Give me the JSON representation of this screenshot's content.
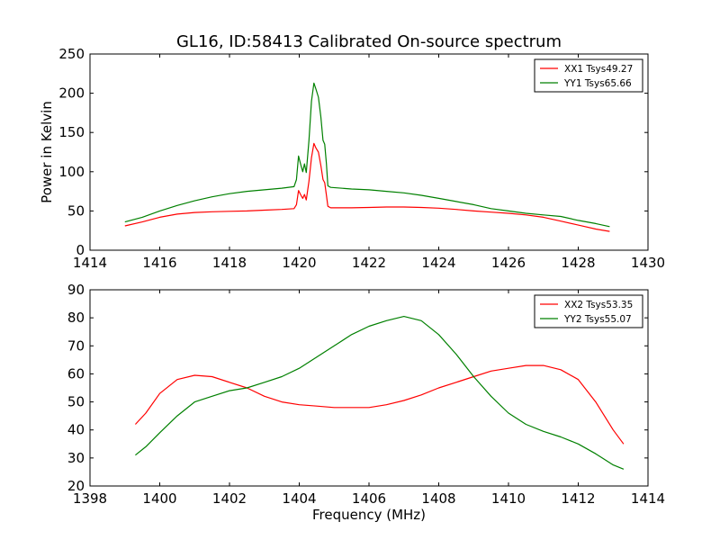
{
  "chart_data": [
    {
      "type": "line",
      "title": "GL16, ID:58413 Calibrated On-source spectrum",
      "xlabel": "",
      "ylabel": "Power in Kelvin",
      "xlim": [
        1414,
        1430
      ],
      "ylim": [
        0,
        250
      ],
      "xticks": [
        "1414",
        "1416",
        "1418",
        "1420",
        "1422",
        "1424",
        "1426",
        "1428",
        "1430"
      ],
      "yticks": [
        "0",
        "50",
        "100",
        "150",
        "200",
        "250"
      ],
      "grid": false,
      "legend": "top-right",
      "series": [
        {
          "name": "XX1 Tsys49.27",
          "color": "#ff0000",
          "points": [
            [
              1415.0,
              31
            ],
            [
              1415.5,
              36
            ],
            [
              1416.0,
              42
            ],
            [
              1416.5,
              46
            ],
            [
              1417.0,
              48
            ],
            [
              1417.5,
              49
            ],
            [
              1418.0,
              49.5
            ],
            [
              1418.5,
              50
            ],
            [
              1419.0,
              51
            ],
            [
              1419.5,
              52
            ],
            [
              1419.85,
              53
            ],
            [
              1419.92,
              58
            ],
            [
              1419.98,
              76
            ],
            [
              1420.05,
              70
            ],
            [
              1420.1,
              66
            ],
            [
              1420.15,
              71
            ],
            [
              1420.2,
              64
            ],
            [
              1420.28,
              88
            ],
            [
              1420.35,
              118
            ],
            [
              1420.42,
              136
            ],
            [
              1420.48,
              130
            ],
            [
              1420.55,
              125
            ],
            [
              1420.62,
              108
            ],
            [
              1420.68,
              90
            ],
            [
              1420.73,
              86
            ],
            [
              1420.78,
              70
            ],
            [
              1420.82,
              56
            ],
            [
              1420.9,
              54
            ],
            [
              1421.5,
              54
            ],
            [
              1422.0,
              54.5
            ],
            [
              1422.5,
              55
            ],
            [
              1423.0,
              55
            ],
            [
              1423.5,
              54.5
            ],
            [
              1424.0,
              53.5
            ],
            [
              1424.5,
              52
            ],
            [
              1425.0,
              50
            ],
            [
              1425.5,
              48.5
            ],
            [
              1426.0,
              47
            ],
            [
              1426.5,
              45
            ],
            [
              1427.0,
              42
            ],
            [
              1427.5,
              37
            ],
            [
              1428.0,
              32
            ],
            [
              1428.5,
              27
            ],
            [
              1428.9,
              24
            ]
          ]
        },
        {
          "name": "YY1 Tsys65.66",
          "color": "#008000",
          "points": [
            [
              1415.0,
              36
            ],
            [
              1415.5,
              42
            ],
            [
              1416.0,
              50
            ],
            [
              1416.5,
              57
            ],
            [
              1417.0,
              63
            ],
            [
              1417.5,
              68
            ],
            [
              1418.0,
              72
            ],
            [
              1418.5,
              75
            ],
            [
              1419.0,
              77
            ],
            [
              1419.5,
              79
            ],
            [
              1419.85,
              81
            ],
            [
              1419.92,
              90
            ],
            [
              1419.98,
              120
            ],
            [
              1420.05,
              108
            ],
            [
              1420.1,
              100
            ],
            [
              1420.15,
              110
            ],
            [
              1420.2,
              99
            ],
            [
              1420.28,
              140
            ],
            [
              1420.35,
              190
            ],
            [
              1420.42,
              213
            ],
            [
              1420.48,
              205
            ],
            [
              1420.55,
              195
            ],
            [
              1420.62,
              170
            ],
            [
              1420.68,
              140
            ],
            [
              1420.73,
              135
            ],
            [
              1420.78,
              110
            ],
            [
              1420.82,
              82
            ],
            [
              1420.9,
              80
            ],
            [
              1421.5,
              78
            ],
            [
              1422.0,
              77
            ],
            [
              1422.5,
              75
            ],
            [
              1423.0,
              73
            ],
            [
              1423.5,
              70
            ],
            [
              1424.0,
              66
            ],
            [
              1424.5,
              62
            ],
            [
              1425.0,
              58
            ],
            [
              1425.5,
              53
            ],
            [
              1426.0,
              50
            ],
            [
              1426.5,
              47
            ],
            [
              1427.0,
              45
            ],
            [
              1427.5,
              43
            ],
            [
              1428.0,
              38
            ],
            [
              1428.5,
              34
            ],
            [
              1428.9,
              30
            ]
          ]
        }
      ]
    },
    {
      "type": "line",
      "title": "",
      "xlabel": "Frequency (MHz)",
      "ylabel": "",
      "xlim": [
        1398,
        1414
      ],
      "ylim": [
        20,
        90
      ],
      "xticks": [
        "1398",
        "1400",
        "1402",
        "1404",
        "1406",
        "1408",
        "1410",
        "1412",
        "1414"
      ],
      "yticks": [
        "20",
        "30",
        "40",
        "50",
        "60",
        "70",
        "80",
        "90"
      ],
      "grid": false,
      "legend": "top-right",
      "series": [
        {
          "name": "XX2 Tsys53.35",
          "color": "#ff0000",
          "points": [
            [
              1399.3,
              42
            ],
            [
              1399.6,
              46
            ],
            [
              1400.0,
              53
            ],
            [
              1400.5,
              58
            ],
            [
              1401.0,
              59.5
            ],
            [
              1401.5,
              59
            ],
            [
              1402.0,
              57
            ],
            [
              1402.5,
              55
            ],
            [
              1403.0,
              52
            ],
            [
              1403.5,
              50
            ],
            [
              1404.0,
              49
            ],
            [
              1404.5,
              48.5
            ],
            [
              1405.0,
              48
            ],
            [
              1405.5,
              48
            ],
            [
              1406.0,
              48
            ],
            [
              1406.5,
              49
            ],
            [
              1407.0,
              50.5
            ],
            [
              1407.5,
              52.5
            ],
            [
              1408.0,
              55
            ],
            [
              1408.5,
              57
            ],
            [
              1409.0,
              59
            ],
            [
              1409.5,
              61
            ],
            [
              1410.0,
              62
            ],
            [
              1410.5,
              63
            ],
            [
              1411.0,
              63
            ],
            [
              1411.5,
              61.5
            ],
            [
              1412.0,
              58
            ],
            [
              1412.5,
              50
            ],
            [
              1413.0,
              40
            ],
            [
              1413.3,
              35
            ]
          ]
        },
        {
          "name": "YY2 Tsys55.07",
          "color": "#008000",
          "points": [
            [
              1399.3,
              31
            ],
            [
              1399.6,
              34
            ],
            [
              1400.0,
              39
            ],
            [
              1400.5,
              45
            ],
            [
              1401.0,
              50
            ],
            [
              1401.5,
              52
            ],
            [
              1402.0,
              54
            ],
            [
              1402.5,
              55
            ],
            [
              1403.0,
              57
            ],
            [
              1403.5,
              59
            ],
            [
              1404.0,
              62
            ],
            [
              1404.5,
              66
            ],
            [
              1405.0,
              70
            ],
            [
              1405.5,
              74
            ],
            [
              1406.0,
              77
            ],
            [
              1406.5,
              79
            ],
            [
              1407.0,
              80.5
            ],
            [
              1407.5,
              79
            ],
            [
              1408.0,
              74
            ],
            [
              1408.5,
              67
            ],
            [
              1409.0,
              59
            ],
            [
              1409.5,
              52
            ],
            [
              1410.0,
              46
            ],
            [
              1410.5,
              42
            ],
            [
              1411.0,
              39.5
            ],
            [
              1411.5,
              37.5
            ],
            [
              1412.0,
              35
            ],
            [
              1412.5,
              31.5
            ],
            [
              1413.0,
              27.5
            ],
            [
              1413.3,
              26
            ]
          ]
        }
      ]
    }
  ]
}
